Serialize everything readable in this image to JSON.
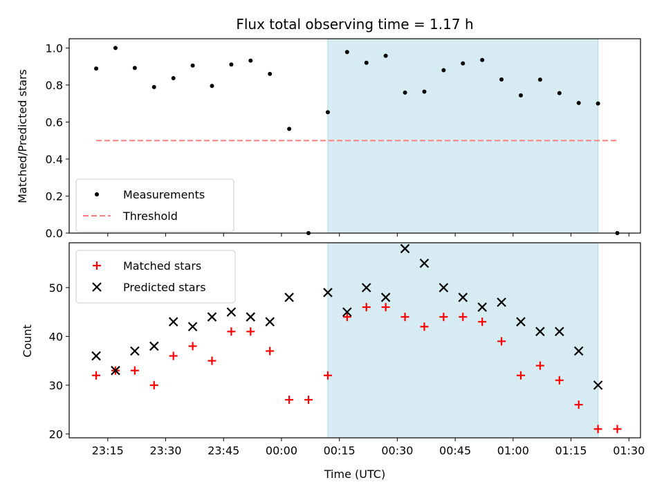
{
  "chart_data": {
    "title": "Flux total observing time = 1.17 h",
    "xlabel": "Time (UTC)",
    "x_tick_labels": [
      "23:15",
      "23:30",
      "23:45",
      "00:00",
      "00:15",
      "00:30",
      "00:45",
      "01:00",
      "01:15",
      "01:30"
    ],
    "x_tick_times": [
      "23:15",
      "23:30",
      "23:45",
      "00:00",
      "00:15",
      "00:30",
      "00:45",
      "01:00",
      "01:15",
      "01:30"
    ],
    "x": [
      "23:12",
      "23:17",
      "23:22",
      "23:27",
      "23:32",
      "23:37",
      "23:42",
      "23:47",
      "23:52",
      "23:57",
      "00:02",
      "00:07",
      "00:12",
      "00:17",
      "00:22",
      "00:27",
      "00:32",
      "00:37",
      "00:42",
      "00:47",
      "00:52",
      "00:57",
      "01:02",
      "01:07",
      "01:12",
      "01:17",
      "01:22",
      "01:27"
    ],
    "shaded_span": [
      "00:12",
      "01:22"
    ],
    "shade_color": "#add8e6",
    "top": {
      "type": "scatter",
      "ylabel": "Matched/Predicted stars",
      "ylim": [
        0,
        1.05
      ],
      "y_ticks": [
        0.0,
        0.2,
        0.4,
        0.6,
        0.8,
        1.0
      ],
      "y_tick_labels": [
        "0.0",
        "0.2",
        "0.4",
        "0.6",
        "0.8",
        "1.0"
      ],
      "legend_location": "lower-left",
      "series": [
        {
          "name": "Measurements",
          "marker": "dot",
          "color": "#000000",
          "values": [
            0.889,
            1.0,
            0.892,
            0.789,
            0.837,
            0.905,
            0.795,
            0.911,
            0.932,
            0.86,
            0.563,
            0.0,
            0.653,
            0.978,
            0.92,
            0.958,
            0.759,
            0.764,
            0.88,
            0.917,
            0.935,
            0.83,
            0.744,
            0.829,
            0.756,
            0.703,
            0.7,
            0.0
          ]
        }
      ],
      "threshold": {
        "name": "Threshold",
        "value": 0.5,
        "color": "#ff7f7f",
        "x_range": [
          "23:12",
          "01:27"
        ]
      }
    },
    "bottom": {
      "type": "scatter",
      "ylabel": "Count",
      "ylim": [
        19.2,
        59.2
      ],
      "y_ticks": [
        20,
        30,
        40,
        50
      ],
      "y_tick_labels": [
        "20",
        "30",
        "40",
        "50"
      ],
      "legend_location": "top-left",
      "series": [
        {
          "name": "Matched stars",
          "marker": "plus",
          "color": "#ff0000",
          "values": [
            32,
            33,
            33,
            30,
            36,
            38,
            35,
            41,
            41,
            37,
            27,
            27,
            32,
            44,
            46,
            46,
            44,
            42,
            44,
            44,
            43,
            39,
            32,
            34,
            31,
            26,
            21,
            21
          ]
        },
        {
          "name": "Predicted stars",
          "marker": "x",
          "color": "#000000",
          "values": [
            36,
            33,
            37,
            38,
            43,
            42,
            44,
            45,
            44,
            43,
            48,
            null,
            49,
            45,
            50,
            48,
            58,
            55,
            50,
            48,
            46,
            47,
            43,
            41,
            41,
            37,
            30,
            null
          ]
        }
      ]
    }
  }
}
